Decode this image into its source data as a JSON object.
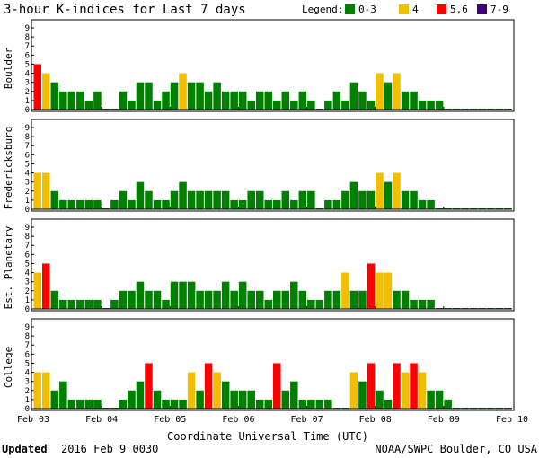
{
  "header": {
    "title": "3-hour K-indices for Last 7 days",
    "legend_title": "Legend:",
    "legend": [
      {
        "label": "0-3",
        "color": "#008000"
      },
      {
        "label": "4",
        "color": "#f0c000"
      },
      {
        "label": "5,6",
        "color": "#ff0000"
      },
      {
        "label": "7-9",
        "color": "#400080"
      }
    ]
  },
  "chart_data": {
    "type": "bar",
    "xlabel": "Coordinate Universal Time (UTC)",
    "x_ticks": [
      "Feb 03",
      "Feb 04",
      "Feb 05",
      "Feb 06",
      "Feb 07",
      "Feb 08",
      "Feb 09",
      "Feb 10"
    ],
    "y_ticks": [
      "0",
      "1",
      "2",
      "3",
      "4",
      "5",
      "6",
      "7",
      "8",
      "9"
    ],
    "ylim": [
      0,
      9
    ],
    "bins_per_day": 8,
    "color_scale": {
      "0-3": "#008000",
      "4": "#f0c000",
      "5,6": "#ff0000",
      "7-9": "#400080"
    },
    "panels": [
      {
        "name": "Boulder",
        "values": [
          5,
          4,
          3,
          2,
          2,
          2,
          1,
          2,
          0,
          0,
          2,
          1,
          3,
          3,
          1,
          2,
          3,
          4,
          3,
          3,
          2,
          3,
          2,
          2,
          2,
          1,
          2,
          2,
          1,
          2,
          1,
          2,
          1,
          0,
          1,
          2,
          1,
          3,
          2,
          1,
          4,
          3,
          4,
          2,
          2,
          1,
          1,
          1,
          0,
          0,
          0,
          0,
          0,
          0,
          0,
          0
        ]
      },
      {
        "name": "Fredericksburg",
        "values": [
          4,
          4,
          2,
          1,
          1,
          1,
          1,
          1,
          0,
          1,
          2,
          1,
          3,
          2,
          1,
          1,
          2,
          3,
          2,
          2,
          2,
          2,
          2,
          1,
          1,
          2,
          2,
          1,
          1,
          2,
          1,
          2,
          2,
          0,
          1,
          1,
          2,
          3,
          2,
          2,
          4,
          3,
          4,
          2,
          2,
          1,
          1,
          0,
          0,
          0,
          0,
          0,
          0,
          0,
          0,
          0
        ]
      },
      {
        "name": "Est. Planetary",
        "values": [
          4,
          5,
          2,
          1,
          1,
          1,
          1,
          1,
          0,
          1,
          2,
          2,
          3,
          2,
          2,
          1,
          3,
          3,
          3,
          2,
          2,
          2,
          3,
          2,
          3,
          2,
          2,
          1,
          2,
          2,
          3,
          2,
          1,
          1,
          2,
          2,
          4,
          2,
          2,
          5,
          4,
          4,
          2,
          2,
          1,
          1,
          1,
          0,
          0,
          0,
          0,
          0,
          0,
          0,
          0,
          0
        ]
      },
      {
        "name": "College",
        "values": [
          4,
          4,
          2,
          3,
          1,
          1,
          1,
          1,
          0,
          0,
          1,
          2,
          3,
          5,
          2,
          1,
          1,
          1,
          4,
          2,
          5,
          4,
          3,
          2,
          2,
          2,
          1,
          1,
          5,
          2,
          3,
          1,
          1,
          1,
          1,
          0,
          0,
          4,
          3,
          5,
          2,
          1,
          5,
          4,
          5,
          4,
          2,
          2,
          1,
          0,
          0,
          0,
          0,
          0,
          0,
          0
        ]
      }
    ]
  },
  "footer": {
    "updated_label": "Updated",
    "updated_value": "2016 Feb  9 0030",
    "source": "NOAA/SWPC Boulder, CO USA"
  }
}
